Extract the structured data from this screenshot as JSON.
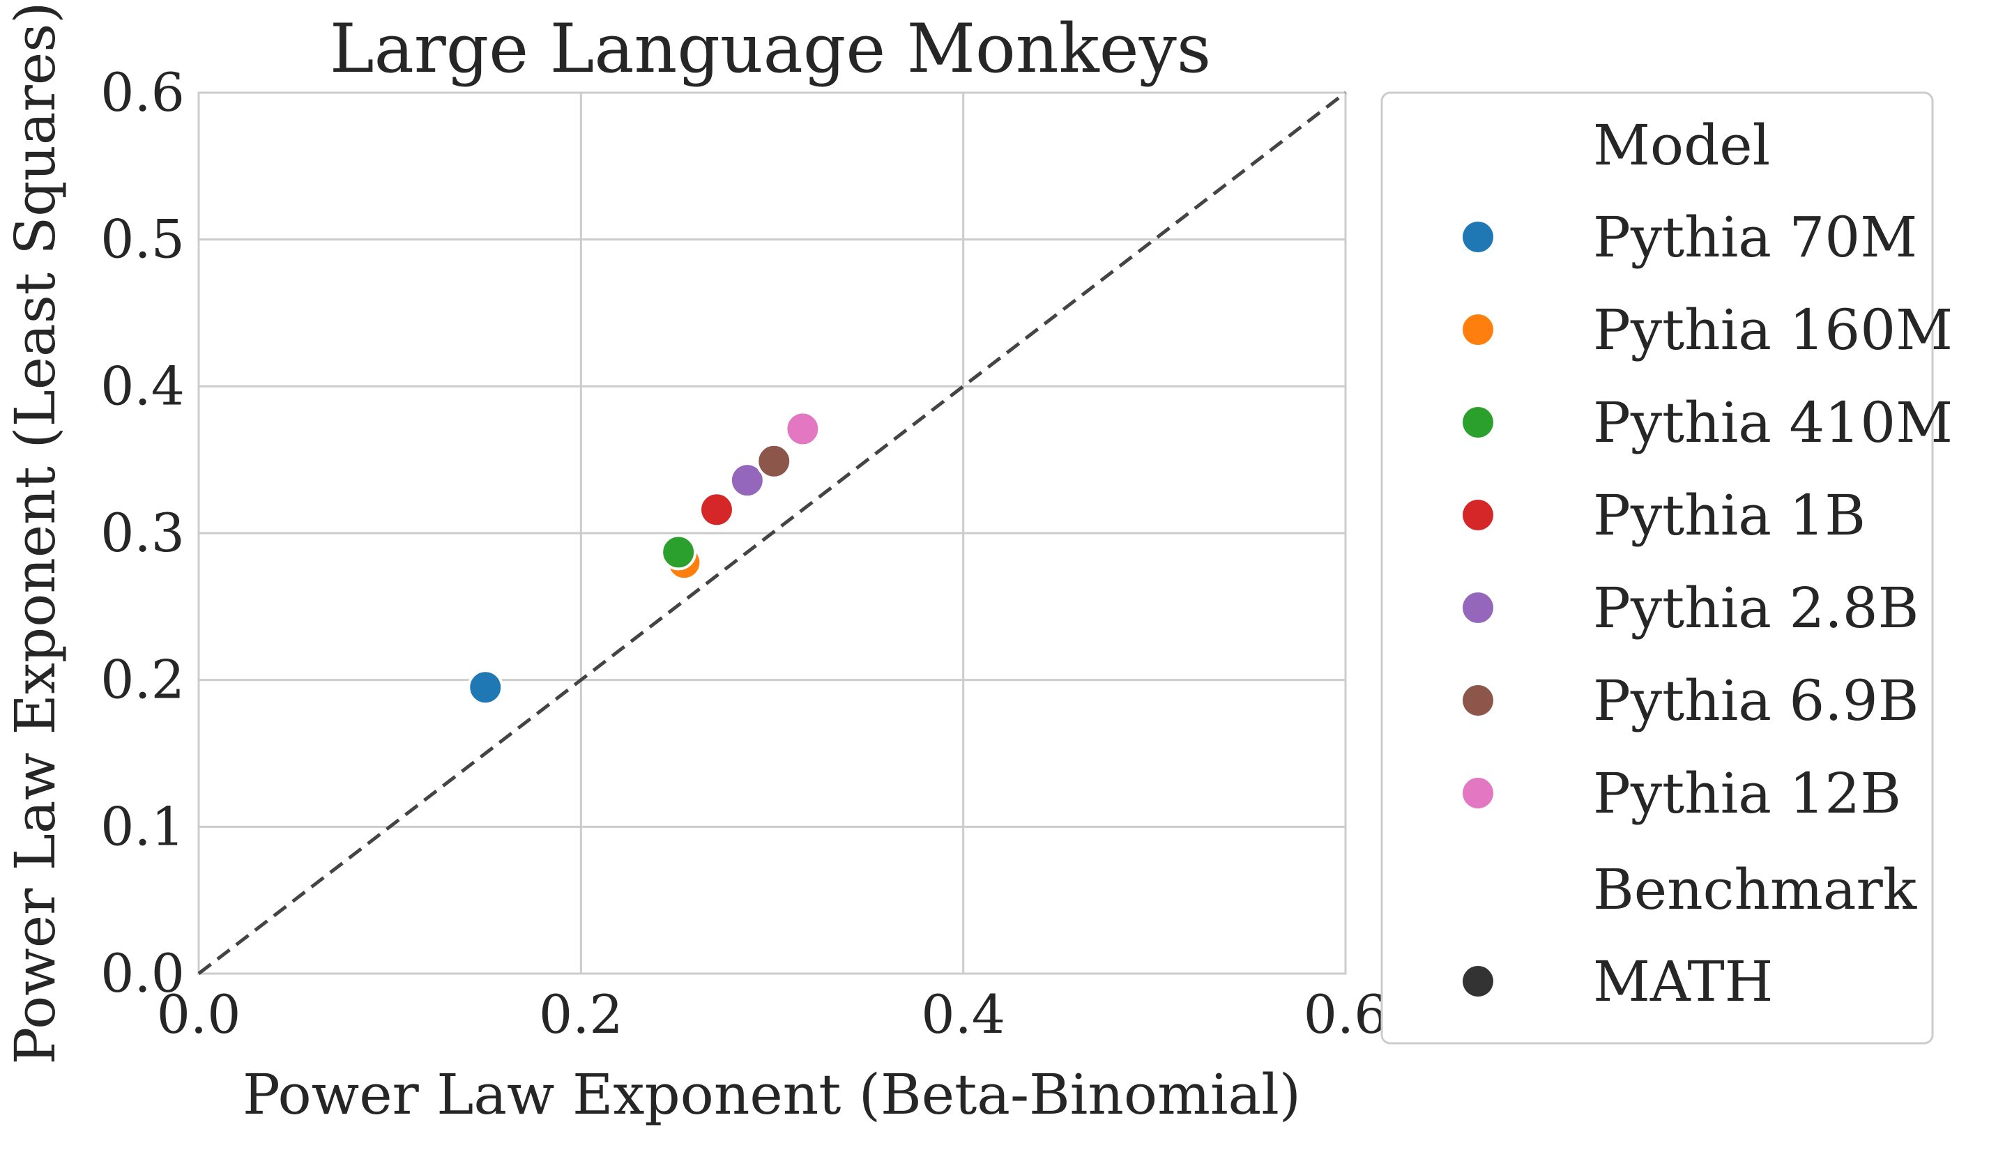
{
  "chart_data": {
    "type": "scatter",
    "title": "Large Language Monkeys",
    "xlabel": "Power Law Exponent (Beta-Binomial)",
    "ylabel": "Power Law Exponent (Least Squares)",
    "xlim": [
      0.0,
      0.6
    ],
    "ylim": [
      0.0,
      0.6
    ],
    "xticks": [
      "0.0",
      "0.2",
      "0.4",
      "0.6"
    ],
    "yticks": [
      "0.0",
      "0.1",
      "0.2",
      "0.3",
      "0.4",
      "0.5",
      "0.6"
    ],
    "grid": true,
    "reference_line": {
      "style": "dashed",
      "x": [
        0.0,
        0.6
      ],
      "y": [
        0.0,
        0.6
      ],
      "color": "#444444"
    },
    "legend": {
      "placement": "outside-right",
      "hue_title": "Model",
      "style_title": "Benchmark"
    },
    "series": [
      {
        "name": "Pythia 70M",
        "color": "#1f77b4",
        "x": [
          0.15
        ],
        "y": [
          0.195
        ]
      },
      {
        "name": "Pythia 160M",
        "color": "#ff7f0e",
        "x": [
          0.254
        ],
        "y": [
          0.28
        ]
      },
      {
        "name": "Pythia 410M",
        "color": "#2ca02c",
        "x": [
          0.251
        ],
        "y": [
          0.287
        ]
      },
      {
        "name": "Pythia 1B",
        "color": "#d62728",
        "x": [
          0.271
        ],
        "y": [
          0.316
        ]
      },
      {
        "name": "Pythia 2.8B",
        "color": "#9467bd",
        "x": [
          0.287
        ],
        "y": [
          0.336
        ]
      },
      {
        "name": "Pythia 6.9B",
        "color": "#8c564b",
        "x": [
          0.301
        ],
        "y": [
          0.349
        ]
      },
      {
        "name": "Pythia 12B",
        "color": "#e377c2",
        "x": [
          0.316
        ],
        "y": [
          0.371
        ]
      }
    ],
    "styles": [
      {
        "name": "MATH",
        "color": "#333333",
        "marker": "circle"
      }
    ]
  }
}
